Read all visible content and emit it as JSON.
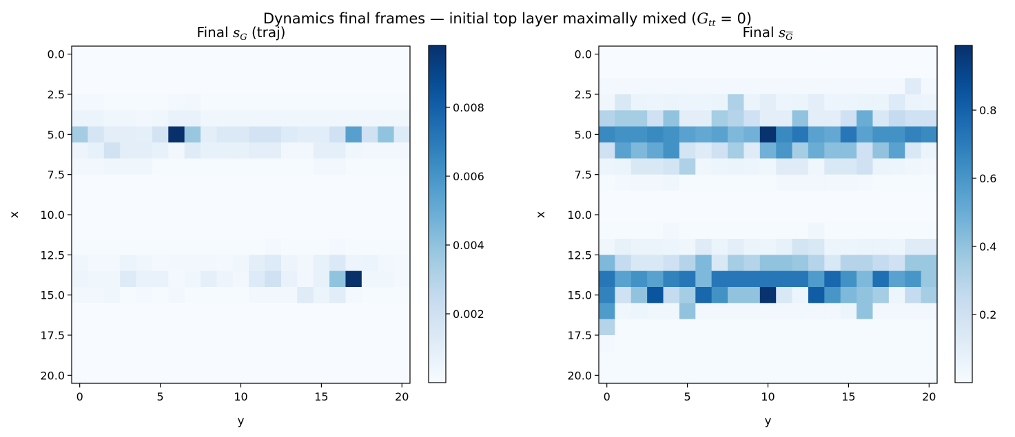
{
  "figure": {
    "suptitle_prefix": "Dynamics final frames — initial top layer maximally mixed (",
    "suptitle_var": "G",
    "suptitle_sub": "tt",
    "suptitle_suffix": " = 0)"
  },
  "panels": [
    {
      "title_prefix": "Final ",
      "title_var": "s",
      "title_sub": "G",
      "title_suffix": " (traj)"
    },
    {
      "title_prefix": "Final ",
      "title_var": "s",
      "title_sub": "G",
      "title_suffix": ""
    }
  ],
  "colormap": {
    "name": "Blues",
    "low": "#f7fbff",
    "high": "#08306b"
  },
  "chart_data": [
    {
      "type": "heatmap",
      "title": "Final s_G (traj)",
      "xlabel": "y",
      "ylabel": "x",
      "rows": 21,
      "cols": 21,
      "y_ticks": [
        "0.0",
        "2.5",
        "5.0",
        "7.5",
        "10.0",
        "12.5",
        "15.0",
        "17.5",
        "20.0"
      ],
      "x_ticks": [
        "0",
        "5",
        "10",
        "15",
        "20"
      ],
      "vmin": 0.0,
      "vmax": 0.0098,
      "colorbar_ticks": [
        "0.002",
        "0.004",
        "0.006",
        "0.008"
      ],
      "values": [
        [
          0,
          0,
          0,
          0,
          0,
          0,
          0,
          0,
          0,
          0,
          0,
          0,
          0,
          0,
          0,
          0,
          0,
          0,
          0,
          0,
          0
        ],
        [
          0,
          0,
          0,
          0,
          0,
          0,
          0,
          0,
          0,
          0,
          0,
          0,
          0,
          0,
          0,
          0,
          0,
          0,
          0,
          0,
          0
        ],
        [
          0,
          0,
          0,
          0,
          0,
          0,
          0,
          0,
          0,
          0,
          0,
          0,
          0,
          0,
          0,
          0,
          0,
          0,
          0,
          0,
          0
        ],
        [
          0.0002,
          0.0002,
          0.0001,
          0.0001,
          0.0001,
          0.0001,
          0.0002,
          0.0003,
          0.0001,
          0.0001,
          0.0001,
          0.0001,
          0.0001,
          0.0001,
          0.0001,
          0.0001,
          0.0001,
          0.0001,
          0.0001,
          0.0001,
          0.0001
        ],
        [
          0.0006,
          0.0006,
          0.0004,
          0.0004,
          0.0003,
          0.0004,
          0.0007,
          0.0007,
          0.0004,
          0.0004,
          0.0004,
          0.0004,
          0.0004,
          0.0004,
          0.0004,
          0.0004,
          0.0004,
          0.0004,
          0.0004,
          0.0004,
          0.0004
        ],
        [
          0.0035,
          0.0017,
          0.001,
          0.001,
          0.0009,
          0.0018,
          0.0098,
          0.0038,
          0.001,
          0.0014,
          0.0014,
          0.0018,
          0.0018,
          0.0013,
          0.0011,
          0.0011,
          0.002,
          0.0055,
          0.002,
          0.004,
          0.0013
        ],
        [
          0.0005,
          0.0008,
          0.0019,
          0.001,
          0.001,
          0.0008,
          0.0003,
          0.0012,
          0.0008,
          0.0008,
          0.0008,
          0.001,
          0.001,
          0.0003,
          0.0003,
          0.0009,
          0.0009,
          0.0004,
          0.0003,
          0.0003,
          0.0003
        ],
        [
          0.0003,
          0.0003,
          0.0004,
          0.0004,
          0.0004,
          0.0001,
          0.0001,
          0.0001,
          0.0001,
          0.0001,
          0.0001,
          0.0001,
          0.0001,
          0.0001,
          0.0001,
          0.0003,
          0.0003,
          0.0001,
          0.0001,
          0.0001,
          0.0001
        ],
        [
          0,
          0,
          0,
          0,
          0,
          0,
          0,
          0,
          0,
          0,
          0,
          0,
          0,
          0,
          0,
          0,
          0,
          0,
          0,
          0,
          0
        ],
        [
          0,
          0,
          0,
          0,
          0,
          0,
          0,
          0,
          0,
          0,
          0,
          0,
          0,
          0,
          0,
          0,
          0,
          0,
          0,
          0,
          0
        ],
        [
          0,
          0,
          0,
          0,
          0,
          0,
          0,
          0,
          0,
          0,
          0,
          0,
          0,
          0,
          0,
          0,
          0,
          0,
          0,
          0,
          0
        ],
        [
          0,
          0,
          0,
          0,
          0,
          0,
          0,
          0,
          0,
          0,
          0,
          0,
          0,
          0,
          0,
          0,
          0,
          0,
          0,
          0,
          0
        ],
        [
          0.0001,
          0.0001,
          0.0001,
          0.0001,
          0.0001,
          0.0001,
          0.0001,
          0.0001,
          0.0001,
          0.0001,
          0.0001,
          0.0001,
          0.0002,
          0.0001,
          0.0001,
          0.0001,
          0.0002,
          0.0001,
          0.0001,
          0.0001,
          0.0001
        ],
        [
          0.0004,
          0.0002,
          0.0002,
          0.0006,
          0.0004,
          0.0002,
          0.0003,
          0.0003,
          0.0003,
          0.0002,
          0.0004,
          0.001,
          0.0013,
          0.0005,
          0.0003,
          0.0008,
          0.0014,
          0.0005,
          0.0006,
          0.0003,
          0.0002
        ],
        [
          0.0005,
          0.0004,
          0.0004,
          0.0013,
          0.0007,
          0.0007,
          0.0002,
          0.0004,
          0.0009,
          0.0005,
          0.0003,
          0.0013,
          0.002,
          0.0007,
          0.0003,
          0.0008,
          0.004,
          0.0098,
          0.0004,
          0.0004,
          0.0002
        ],
        [
          0.0003,
          0.0003,
          0.0004,
          0.0001,
          0.0002,
          0.0001,
          0.0003,
          0.0001,
          0.0001,
          0.0001,
          0.0001,
          0.0003,
          0.0003,
          0.0003,
          0.0012,
          0.0006,
          0.0011,
          0.0002,
          0.0001,
          0.0001,
          0.0001
        ],
        [
          0,
          0,
          0,
          0,
          0,
          0,
          0,
          0,
          0,
          0,
          0,
          0,
          0,
          0,
          0,
          0,
          0,
          0,
          0,
          0,
          0
        ],
        [
          0,
          0,
          0,
          0,
          0,
          0,
          0,
          0,
          0,
          0,
          0,
          0,
          0,
          0,
          0,
          0,
          0,
          0,
          0,
          0,
          0
        ],
        [
          0,
          0,
          0,
          0,
          0,
          0,
          0,
          0,
          0,
          0,
          0,
          0,
          0,
          0,
          0,
          0,
          0,
          0,
          0,
          0,
          0
        ],
        [
          0,
          0,
          0,
          0,
          0,
          0,
          0,
          0,
          0,
          0,
          0,
          0,
          0,
          0,
          0,
          0,
          0,
          0,
          0,
          0,
          0
        ],
        [
          0,
          0,
          0,
          0,
          0,
          0,
          0,
          0,
          0,
          0,
          0,
          0,
          0,
          0,
          0,
          0,
          0,
          0,
          0,
          0,
          0
        ]
      ]
    },
    {
      "type": "heatmap",
      "title": "Final s_G-bar",
      "xlabel": "y",
      "ylabel": "x",
      "rows": 21,
      "cols": 21,
      "y_ticks": [
        "0.0",
        "2.5",
        "5.0",
        "7.5",
        "10.0",
        "12.5",
        "15.0",
        "17.5",
        "20.0"
      ],
      "x_ticks": [
        "0",
        "5",
        "10",
        "15",
        "20"
      ],
      "vmin": 0.0,
      "vmax": 0.99,
      "colorbar_ticks": [
        "0.2",
        "0.4",
        "0.6",
        "0.8"
      ],
      "values": [
        [
          0,
          0,
          0,
          0,
          0,
          0,
          0,
          0,
          0,
          0,
          0,
          0,
          0,
          0,
          0,
          0,
          0,
          0,
          0,
          0,
          0
        ],
        [
          0,
          0,
          0,
          0,
          0,
          0,
          0,
          0,
          0,
          0,
          0,
          0,
          0,
          0,
          0,
          0,
          0,
          0,
          0,
          0,
          0
        ],
        [
          0.02,
          0.02,
          0.02,
          0.02,
          0.02,
          0.02,
          0.02,
          0.02,
          0.02,
          0.02,
          0.02,
          0.02,
          0.02,
          0.02,
          0.02,
          0.02,
          0.02,
          0.02,
          0.02,
          0.12,
          0.02
        ],
        [
          0.04,
          0.15,
          0.06,
          0.05,
          0.06,
          0.05,
          0.05,
          0.06,
          0.32,
          0.06,
          0.1,
          0.05,
          0.06,
          0.1,
          0.05,
          0.05,
          0.06,
          0.06,
          0.13,
          0.06,
          0.05
        ],
        [
          0.3,
          0.35,
          0.35,
          0.2,
          0.4,
          0.1,
          0.1,
          0.35,
          0.3,
          0.2,
          0.1,
          0.1,
          0.4,
          0.1,
          0.1,
          0.2,
          0.5,
          0.15,
          0.25,
          0.2,
          0.2
        ],
        [
          0.65,
          0.62,
          0.62,
          0.65,
          0.62,
          0.55,
          0.52,
          0.55,
          0.45,
          0.48,
          0.98,
          0.65,
          0.72,
          0.55,
          0.52,
          0.72,
          0.55,
          0.62,
          0.62,
          0.68,
          0.65
        ],
        [
          0.2,
          0.55,
          0.45,
          0.52,
          0.62,
          0.18,
          0.12,
          0.2,
          0.35,
          0.12,
          0.48,
          0.6,
          0.35,
          0.5,
          0.42,
          0.42,
          0.2,
          0.4,
          0.55,
          0.15,
          0.06
        ],
        [
          0.05,
          0.06,
          0.15,
          0.15,
          0.18,
          0.32,
          0.04,
          0.05,
          0.06,
          0.05,
          0.04,
          0.12,
          0.12,
          0.04,
          0.15,
          0.15,
          0.2,
          0.06,
          0.05,
          0.04,
          0.03
        ],
        [
          0.01,
          0.02,
          0.03,
          0.03,
          0.04,
          0.01,
          0.01,
          0.01,
          0.01,
          0.01,
          0.01,
          0.03,
          0.03,
          0.03,
          0.03,
          0.03,
          0.02,
          0.01,
          0.01,
          0.01,
          0.01
        ],
        [
          0,
          0,
          0,
          0,
          0,
          0,
          0,
          0,
          0,
          0,
          0,
          0,
          0,
          0,
          0,
          0,
          0,
          0,
          0,
          0,
          0
        ],
        [
          0,
          0,
          0,
          0,
          0,
          0,
          0,
          0,
          0,
          0,
          0,
          0,
          0,
          0,
          0,
          0,
          0,
          0,
          0,
          0,
          0
        ],
        [
          0.01,
          0.01,
          0.01,
          0.01,
          0.03,
          0.01,
          0.01,
          0.01,
          0.01,
          0.01,
          0.01,
          0.01,
          0.01,
          0.04,
          0.01,
          0.01,
          0.01,
          0.01,
          0.01,
          0.01,
          0.01
        ],
        [
          0.04,
          0.08,
          0.06,
          0.06,
          0.05,
          0.04,
          0.12,
          0.06,
          0.1,
          0.06,
          0.05,
          0.08,
          0.18,
          0.15,
          0.05,
          0.05,
          0.06,
          0.06,
          0.05,
          0.12,
          0.12
        ],
        [
          0.45,
          0.25,
          0.15,
          0.15,
          0.2,
          0.3,
          0.45,
          0.15,
          0.35,
          0.3,
          0.4,
          0.4,
          0.38,
          0.3,
          0.15,
          0.3,
          0.3,
          0.25,
          0.2,
          0.38,
          0.38
        ],
        [
          0.72,
          0.55,
          0.62,
          0.55,
          0.68,
          0.72,
          0.45,
          0.72,
          0.72,
          0.72,
          0.72,
          0.72,
          0.72,
          0.58,
          0.78,
          0.62,
          0.45,
          0.75,
          0.55,
          0.6,
          0.38
        ],
        [
          0.68,
          0.2,
          0.4,
          0.85,
          0.25,
          0.35,
          0.78,
          0.62,
          0.4,
          0.4,
          0.98,
          0.15,
          0.05,
          0.82,
          0.6,
          0.45,
          0.4,
          0.35,
          0.05,
          0.25,
          0.35
        ],
        [
          0.58,
          0.04,
          0.05,
          0.04,
          0.04,
          0.4,
          0.03,
          0.03,
          0.03,
          0.03,
          0.03,
          0.03,
          0.03,
          0.03,
          0.03,
          0.05,
          0.4,
          0.03,
          0.03,
          0.03,
          0.03
        ],
        [
          0.3,
          0.01,
          0.01,
          0.01,
          0.01,
          0.01,
          0.01,
          0.01,
          0.01,
          0.01,
          0.01,
          0.01,
          0.01,
          0.01,
          0.01,
          0.01,
          0.01,
          0.01,
          0.01,
          0.01,
          0.01
        ],
        [
          0.02,
          0.01,
          0.01,
          0.01,
          0.01,
          0.01,
          0.01,
          0.01,
          0.01,
          0.01,
          0.01,
          0.01,
          0.01,
          0.01,
          0.01,
          0.01,
          0.01,
          0.01,
          0.01,
          0.01,
          0.01
        ],
        [
          0.01,
          0.01,
          0.01,
          0.01,
          0.01,
          0.01,
          0.01,
          0.01,
          0.01,
          0.01,
          0.01,
          0.01,
          0.01,
          0.01,
          0.01,
          0.01,
          0.01,
          0.01,
          0.01,
          0.01,
          0.01
        ],
        [
          0.01,
          0.01,
          0.01,
          0.01,
          0.01,
          0.01,
          0.01,
          0.01,
          0.01,
          0.01,
          0.01,
          0.01,
          0.01,
          0.01,
          0.01,
          0.01,
          0.01,
          0.01,
          0.01,
          0.01,
          0.01
        ]
      ]
    }
  ]
}
